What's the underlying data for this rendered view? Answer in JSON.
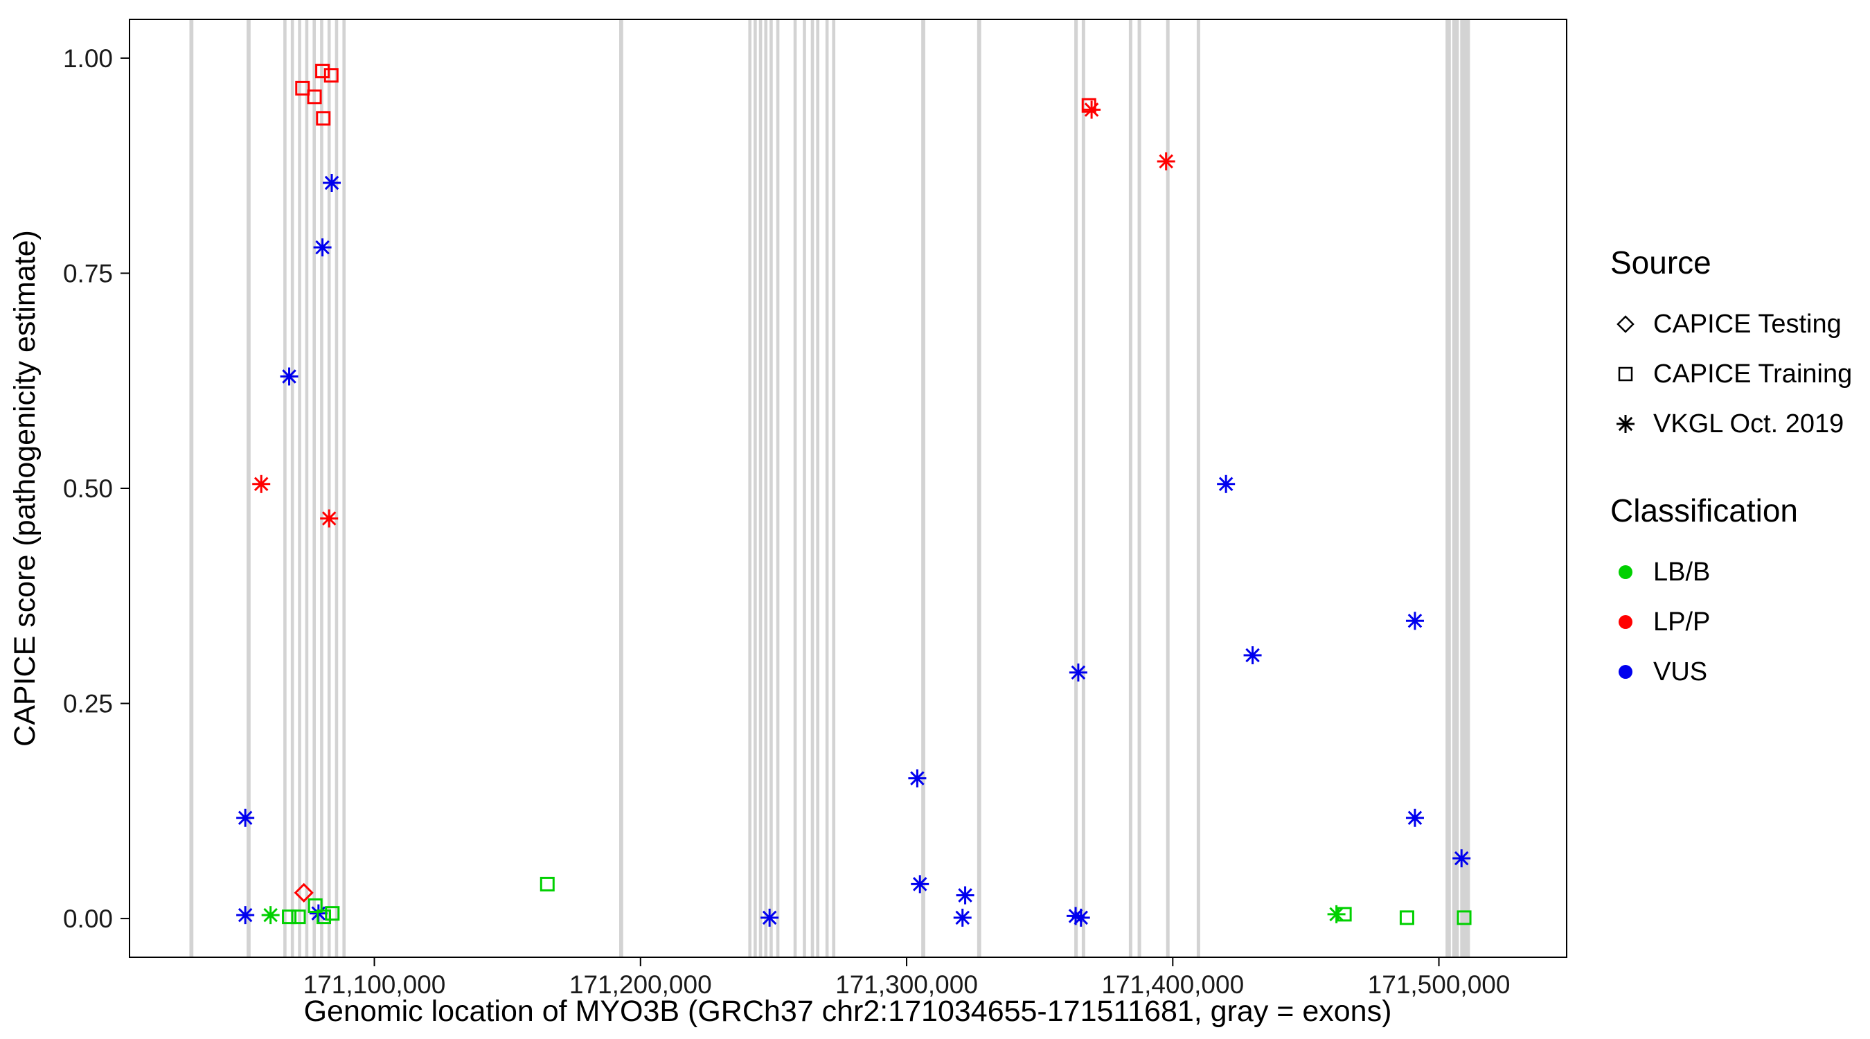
{
  "legend": {
    "source": {
      "title": "Source",
      "items": [
        {
          "label": "CAPICE Testing",
          "shape": "diamond"
        },
        {
          "label": "CAPICE Training",
          "shape": "square"
        },
        {
          "label": "VKGL Oct. 2019",
          "shape": "asterisk"
        }
      ]
    },
    "classification": {
      "title": "Classification",
      "items": [
        {
          "label": "LB/B",
          "color": "#00D000"
        },
        {
          "label": "LP/P",
          "color": "#FF0000"
        },
        {
          "label": "VUS",
          "color": "#0000EE"
        }
      ]
    }
  },
  "chart_data": {
    "type": "scatter",
    "title": "",
    "xlabel": "Genomic location of MYO3B (GRCh37 chr2:171034655-171511681, gray = exons)",
    "ylabel": "CAPICE score (pathogenicity estimate)",
    "xlim": [
      171008000,
      171548000
    ],
    "ylim": [
      -0.045,
      1.045
    ],
    "x_ticks": [
      171100000,
      171200000,
      171300000,
      171400000,
      171500000
    ],
    "x_tick_labels": [
      "171,100,000",
      "171,200,000",
      "171,300,000",
      "171,400,000",
      "171,500,000"
    ],
    "y_ticks": [
      0,
      0.25,
      0.5,
      0.75,
      1
    ],
    "y_tick_labels": [
      "0.00",
      "0.25",
      "0.50",
      "0.75",
      "1.00"
    ],
    "grid": false,
    "legend_position": "right",
    "exon_color": "#D3D3D3",
    "colors": {
      "LB/B": "#00D000",
      "LP/P": "#FF0000",
      "VUS": "#0000EE"
    },
    "shape_by_source": {
      "CAPICE Testing": "diamond",
      "CAPICE Training": "square",
      "VKGL Oct. 2019": "asterisk"
    },
    "exons": [
      [
        171030500,
        171032000
      ],
      [
        171052000,
        171053500
      ],
      [
        171065800,
        171067000
      ],
      [
        171068600,
        171069800
      ],
      [
        171071300,
        171072500
      ],
      [
        171074000,
        171075200
      ],
      [
        171076800,
        171078000
      ],
      [
        171079600,
        171080800
      ],
      [
        171082400,
        171083600
      ],
      [
        171085200,
        171086400
      ],
      [
        171088000,
        171089200
      ],
      [
        171192000,
        171193500
      ],
      [
        171240500,
        171241700
      ],
      [
        171242500,
        171243700
      ],
      [
        171244500,
        171245700
      ],
      [
        171246500,
        171247700
      ],
      [
        171248500,
        171249700
      ],
      [
        171251000,
        171252200
      ],
      [
        171257500,
        171258700
      ],
      [
        171261000,
        171262200
      ],
      [
        171264000,
        171265200
      ],
      [
        171266000,
        171267200
      ],
      [
        171269500,
        171270700
      ],
      [
        171272000,
        171273200
      ],
      [
        171305500,
        171307000
      ],
      [
        171326500,
        171328000
      ],
      [
        171363000,
        171364300
      ],
      [
        171365800,
        171367100
      ],
      [
        171383500,
        171384800
      ],
      [
        171386800,
        171388100
      ],
      [
        171397500,
        171398800
      ],
      [
        171409000,
        171410300
      ],
      [
        171502500,
        171504500
      ],
      [
        171505000,
        171507500
      ],
      [
        171508000,
        171511681
      ]
    ],
    "points": [
      {
        "x": 171073000,
        "y": 0.965,
        "source": "CAPICE Training",
        "classification": "LP/P"
      },
      {
        "x": 171077500,
        "y": 0.955,
        "source": "CAPICE Training",
        "classification": "LP/P"
      },
      {
        "x": 171080500,
        "y": 0.985,
        "source": "CAPICE Training",
        "classification": "LP/P"
      },
      {
        "x": 171083800,
        "y": 0.98,
        "source": "CAPICE Training",
        "classification": "LP/P"
      },
      {
        "x": 171080800,
        "y": 0.93,
        "source": "CAPICE Training",
        "classification": "LP/P"
      },
      {
        "x": 171368500,
        "y": 0.945,
        "source": "CAPICE Training",
        "classification": "LP/P"
      },
      {
        "x": 171057500,
        "y": 0.505,
        "source": "VKGL Oct. 2019",
        "classification": "LP/P"
      },
      {
        "x": 171083000,
        "y": 0.465,
        "source": "VKGL Oct. 2019",
        "classification": "LP/P"
      },
      {
        "x": 171369500,
        "y": 0.94,
        "source": "VKGL Oct. 2019",
        "classification": "LP/P"
      },
      {
        "x": 171397500,
        "y": 0.88,
        "source": "VKGL Oct. 2019",
        "classification": "LP/P"
      },
      {
        "x": 171073500,
        "y": 0.03,
        "source": "CAPICE Testing",
        "classification": "LP/P"
      },
      {
        "x": 171084000,
        "y": 0.855,
        "source": "VKGL Oct. 2019",
        "classification": "VUS"
      },
      {
        "x": 171080500,
        "y": 0.78,
        "source": "VKGL Oct. 2019",
        "classification": "VUS"
      },
      {
        "x": 171068000,
        "y": 0.63,
        "source": "VKGL Oct. 2019",
        "classification": "VUS"
      },
      {
        "x": 171051500,
        "y": 0.117,
        "source": "VKGL Oct. 2019",
        "classification": "VUS"
      },
      {
        "x": 171051500,
        "y": 0.004,
        "source": "VKGL Oct. 2019",
        "classification": "VUS"
      },
      {
        "x": 171079000,
        "y": 0.006,
        "source": "VKGL Oct. 2019",
        "classification": "VUS"
      },
      {
        "x": 171248500,
        "y": 0.001,
        "source": "VKGL Oct. 2019",
        "classification": "VUS"
      },
      {
        "x": 171304000,
        "y": 0.163,
        "source": "VKGL Oct. 2019",
        "classification": "VUS"
      },
      {
        "x": 171305000,
        "y": 0.04,
        "source": "VKGL Oct. 2019",
        "classification": "VUS"
      },
      {
        "x": 171322000,
        "y": 0.027,
        "source": "VKGL Oct. 2019",
        "classification": "VUS"
      },
      {
        "x": 171321000,
        "y": 0.001,
        "source": "VKGL Oct. 2019",
        "classification": "VUS"
      },
      {
        "x": 171364500,
        "y": 0.286,
        "source": "VKGL Oct. 2019",
        "classification": "VUS"
      },
      {
        "x": 171363500,
        "y": 0.003,
        "source": "VKGL Oct. 2019",
        "classification": "VUS"
      },
      {
        "x": 171365500,
        "y": 0.001,
        "source": "VKGL Oct. 2019",
        "classification": "VUS"
      },
      {
        "x": 171420000,
        "y": 0.505,
        "source": "VKGL Oct. 2019",
        "classification": "VUS"
      },
      {
        "x": 171430000,
        "y": 0.306,
        "source": "VKGL Oct. 2019",
        "classification": "VUS"
      },
      {
        "x": 171491000,
        "y": 0.346,
        "source": "VKGL Oct. 2019",
        "classification": "VUS"
      },
      {
        "x": 171491000,
        "y": 0.117,
        "source": "VKGL Oct. 2019",
        "classification": "VUS"
      },
      {
        "x": 171508500,
        "y": 0.07,
        "source": "VKGL Oct. 2019",
        "classification": "VUS"
      },
      {
        "x": 171061000,
        "y": 0.004,
        "source": "VKGL Oct. 2019",
        "classification": "LB/B"
      },
      {
        "x": 171068000,
        "y": 0.002,
        "source": "CAPICE Training",
        "classification": "LB/B"
      },
      {
        "x": 171071500,
        "y": 0.002,
        "source": "CAPICE Training",
        "classification": "LB/B"
      },
      {
        "x": 171077800,
        "y": 0.015,
        "source": "CAPICE Training",
        "classification": "LB/B"
      },
      {
        "x": 171081000,
        "y": 0.002,
        "source": "CAPICE Training",
        "classification": "LB/B"
      },
      {
        "x": 171084200,
        "y": 0.006,
        "source": "CAPICE Training",
        "classification": "LB/B"
      },
      {
        "x": 171165000,
        "y": 0.04,
        "source": "CAPICE Training",
        "classification": "LB/B"
      },
      {
        "x": 171461500,
        "y": 0.005,
        "source": "VKGL Oct. 2019",
        "classification": "LB/B"
      },
      {
        "x": 171464500,
        "y": 0.005,
        "source": "CAPICE Training",
        "classification": "LB/B"
      },
      {
        "x": 171488000,
        "y": 0.001,
        "source": "CAPICE Training",
        "classification": "LB/B"
      },
      {
        "x": 171509500,
        "y": 0.001,
        "source": "CAPICE Training",
        "classification": "LB/B"
      }
    ]
  }
}
